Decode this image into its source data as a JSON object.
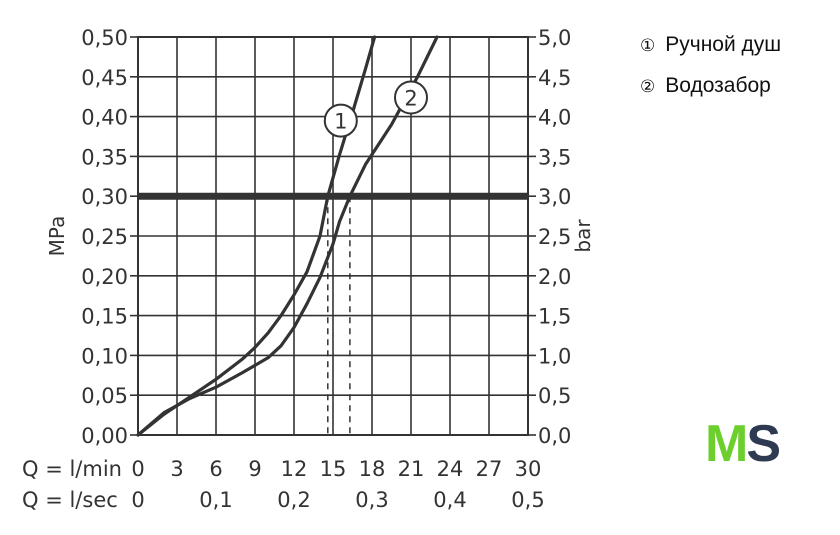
{
  "legend": {
    "item1_num": "①",
    "item1_label": "Ручной душ",
    "item2_num": "②",
    "item2_label": "Водозабор"
  },
  "logo": {
    "m": "M",
    "s": "S",
    "m_color": "#6ccf2e",
    "s_color": "#2d3a52"
  },
  "chart_data": {
    "type": "line",
    "left_axis_label": "MPa",
    "right_axis_label": "bar",
    "ylim": [
      0,
      0.5
    ],
    "y_right_lim": [
      0,
      5.0
    ],
    "xlim": [
      0,
      30
    ],
    "grid": true,
    "y_ticks_left": [
      "0,00",
      "0,05",
      "0,10",
      "0,15",
      "0,20",
      "0,25",
      "0,30",
      "0,35",
      "0,40",
      "0,45",
      "0,50"
    ],
    "y_ticks_right": [
      "0,0",
      "0,5",
      "1,0",
      "1,5",
      "2,0",
      "2,5",
      "3,0",
      "3,5",
      "4,0",
      "4,5",
      "5,0"
    ],
    "x_row1_label": "Q = l/min",
    "x_row1_ticks": [
      "0",
      "3",
      "6",
      "9",
      "12",
      "15",
      "18",
      "21",
      "24",
      "27",
      "30"
    ],
    "x_row2_label": "Q = l/sec",
    "x_row2_ticks": [
      {
        "label": "0",
        "x": 0
      },
      {
        "label": "0,1",
        "x": 6
      },
      {
        "label": "0,2",
        "x": 12
      },
      {
        "label": "0,3",
        "x": 18
      },
      {
        "label": "0,4",
        "x": 24
      },
      {
        "label": "0,5",
        "x": 30
      }
    ],
    "reference_line": {
      "y": 0.3
    },
    "dashed_lines": [
      {
        "x": 14.6,
        "y": 0.3
      },
      {
        "x": 16.3,
        "y": 0.3
      }
    ],
    "series": [
      {
        "name": "1",
        "color": "#333333",
        "x": [
          0,
          2,
          4,
          6,
          8,
          9,
          10,
          11,
          12,
          13,
          14,
          14.6,
          15.5,
          16.5,
          17.5,
          18.2
        ],
        "y": [
          0,
          0.026,
          0.048,
          0.07,
          0.095,
          0.11,
          0.128,
          0.15,
          0.176,
          0.205,
          0.25,
          0.3,
          0.352,
          0.405,
          0.46,
          0.5
        ]
      },
      {
        "name": "2",
        "color": "#333333",
        "x": [
          0,
          2,
          4,
          6,
          8,
          10,
          11,
          12,
          13,
          14,
          15,
          15.5,
          16.3,
          17.5,
          19.5,
          21.5,
          23
        ],
        "y": [
          0,
          0.028,
          0.046,
          0.06,
          0.078,
          0.097,
          0.112,
          0.135,
          0.165,
          0.198,
          0.24,
          0.268,
          0.3,
          0.34,
          0.39,
          0.45,
          0.5
        ]
      }
    ],
    "curve_labels": [
      {
        "text": "1",
        "x": 15.6,
        "y": 0.395
      },
      {
        "text": "2",
        "x": 21.0,
        "y": 0.424
      }
    ]
  }
}
